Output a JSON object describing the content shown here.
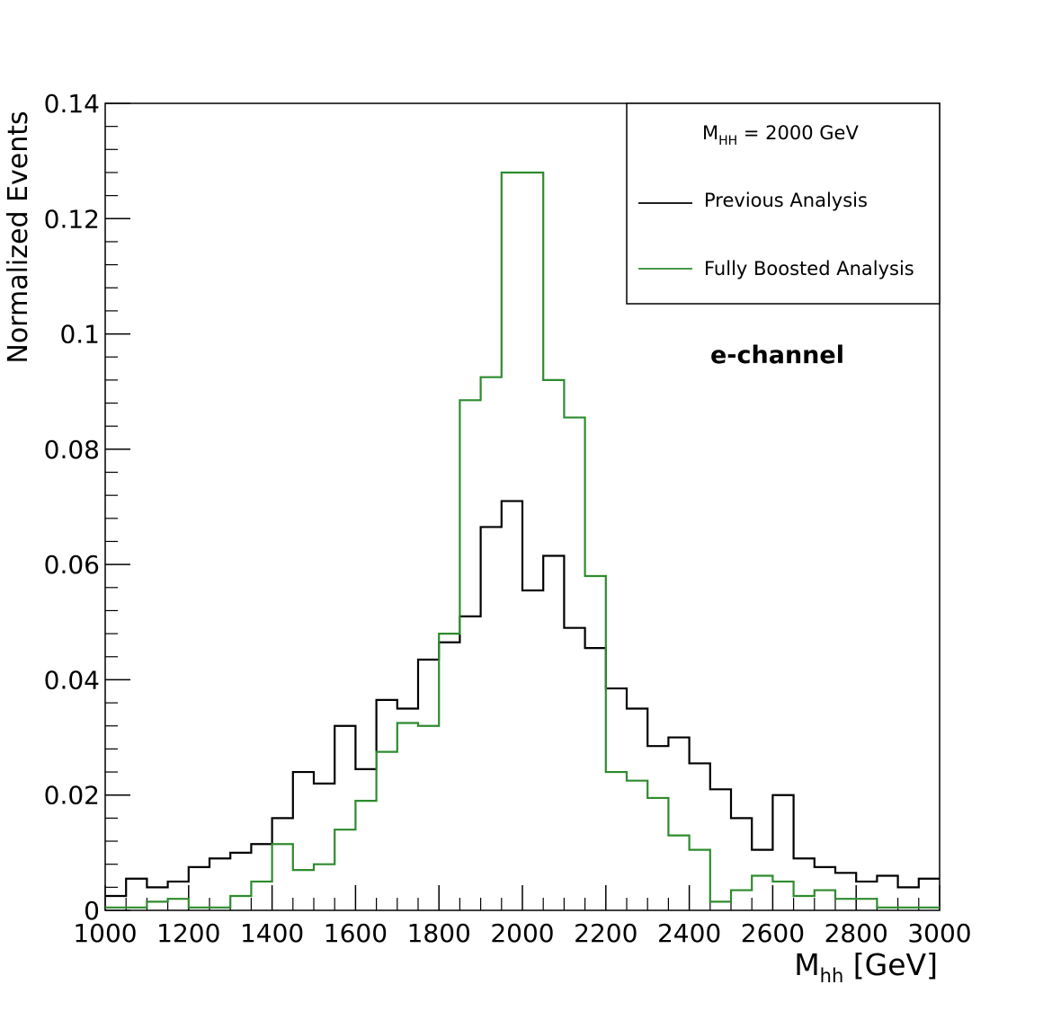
{
  "chart_data": {
    "type": "line",
    "subtype": "step-histogram",
    "xlabel_main": "M",
    "xlabel_sub": "hh",
    "xlabel_unit": " [GeV]",
    "ylabel": "Normalized Events",
    "xlim": [
      1000,
      3000
    ],
    "ylim": [
      0,
      0.14
    ],
    "x_ticks": [
      1000,
      1200,
      1400,
      1600,
      1800,
      2000,
      2200,
      2400,
      2600,
      2800,
      3000
    ],
    "x_tick_labels": [
      "1000",
      "1200",
      "1400",
      "1600",
      "1800",
      "2000",
      "2200",
      "2400",
      "2600",
      "2800",
      "3000"
    ],
    "y_ticks": [
      0,
      0.02,
      0.04,
      0.06,
      0.08,
      0.1,
      0.12,
      0.14
    ],
    "y_tick_labels": [
      "0",
      "0.02",
      "0.04",
      "0.06",
      "0.08",
      "0.1",
      "0.12",
      "0.14"
    ],
    "grid": false,
    "legend_placement": "top-right",
    "legend": {
      "header_main": "M",
      "header_sub": "HH",
      "header_rest": " = 2000 GeV"
    },
    "annotation": "e-channel",
    "bin_edges": [
      1000,
      1050,
      1100,
      1150,
      1200,
      1250,
      1300,
      1350,
      1400,
      1450,
      1500,
      1550,
      1600,
      1650,
      1700,
      1750,
      1800,
      1850,
      1900,
      1950,
      2000,
      2050,
      2100,
      2150,
      2200,
      2250,
      2300,
      2350,
      2400,
      2450,
      2500,
      2550,
      2600,
      2650,
      2700,
      2750,
      2800,
      2850,
      2900,
      2950,
      3000
    ],
    "series": [
      {
        "name": "Previous Analysis",
        "color": "#000000",
        "values": [
          0.0025,
          0.0055,
          0.004,
          0.005,
          0.0075,
          0.009,
          0.01,
          0.0115,
          0.016,
          0.024,
          0.022,
          0.032,
          0.0245,
          0.0365,
          0.035,
          0.0435,
          0.0465,
          0.051,
          0.0665,
          0.071,
          0.0555,
          0.0615,
          0.049,
          0.0455,
          0.0385,
          0.035,
          0.0285,
          0.03,
          0.0255,
          0.021,
          0.016,
          0.0105,
          0.02,
          0.009,
          0.0075,
          0.0065,
          0.005,
          0.006,
          0.004,
          0.0055
        ]
      },
      {
        "name": "Fully Boosted Analysis",
        "color": "#2e8b2e",
        "values": [
          0.0005,
          0.0005,
          0.0015,
          0.002,
          0.0005,
          0.0005,
          0.0025,
          0.005,
          0.0115,
          0.007,
          0.008,
          0.014,
          0.019,
          0.0275,
          0.0325,
          0.032,
          0.048,
          0.0885,
          0.0925,
          0.128,
          0.128,
          0.092,
          0.0855,
          0.058,
          0.024,
          0.0225,
          0.0195,
          0.013,
          0.0105,
          0.0015,
          0.0035,
          0.006,
          0.005,
          0.0025,
          0.0035,
          0.002,
          0.002,
          0.0005,
          0.0005,
          0.0005
        ]
      }
    ]
  }
}
